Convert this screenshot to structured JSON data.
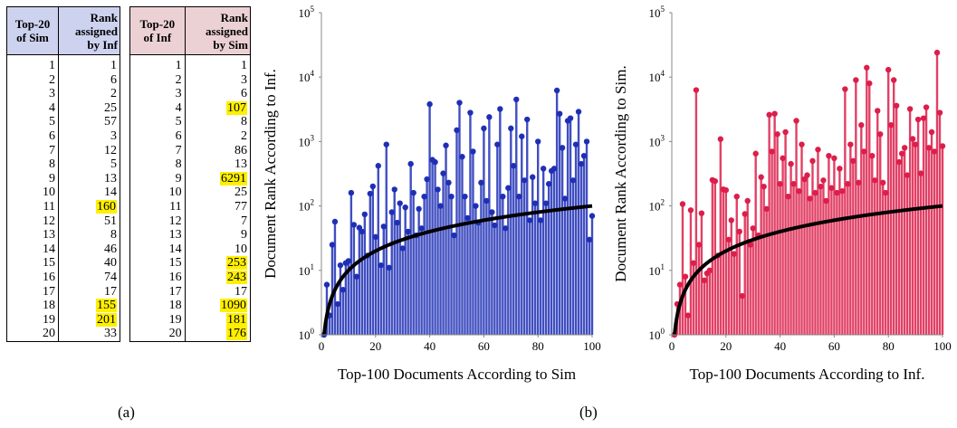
{
  "table_a": {
    "header_left_1": "Top-20",
    "header_left_2": "of Sim",
    "header_right_1": "Rank",
    "header_right_2": "assigned",
    "header_right_3": "by Inf",
    "highlight_color": "#ffef00",
    "rows": [
      [
        "1",
        "1",
        false
      ],
      [
        "2",
        "6",
        false
      ],
      [
        "3",
        "2",
        false
      ],
      [
        "4",
        "25",
        false
      ],
      [
        "5",
        "57",
        false
      ],
      [
        "6",
        "3",
        false
      ],
      [
        "7",
        "12",
        false
      ],
      [
        "8",
        "5",
        false
      ],
      [
        "9",
        "13",
        false
      ],
      [
        "10",
        "14",
        false
      ],
      [
        "11",
        "160",
        true
      ],
      [
        "12",
        "51",
        false
      ],
      [
        "13",
        "8",
        false
      ],
      [
        "14",
        "46",
        false
      ],
      [
        "15",
        "40",
        false
      ],
      [
        "16",
        "74",
        false
      ],
      [
        "17",
        "17",
        false
      ],
      [
        "18",
        "155",
        true
      ],
      [
        "19",
        "201",
        true
      ],
      [
        "20",
        "33",
        false
      ]
    ]
  },
  "table_b": {
    "header_left_1": "Top-20",
    "header_left_2": "of Inf",
    "header_right_1": "Rank",
    "header_right_2": "assigned",
    "header_right_3": "by Sim",
    "rows": [
      [
        "1",
        "1",
        false
      ],
      [
        "2",
        "3",
        false
      ],
      [
        "3",
        "6",
        false
      ],
      [
        "4",
        "107",
        true
      ],
      [
        "5",
        "8",
        false
      ],
      [
        "6",
        "2",
        false
      ],
      [
        "7",
        "86",
        false
      ],
      [
        "8",
        "13",
        false
      ],
      [
        "9",
        "6291",
        true
      ],
      [
        "10",
        "25",
        false
      ],
      [
        "11",
        "77",
        false
      ],
      [
        "12",
        "7",
        false
      ],
      [
        "13",
        "9",
        false
      ],
      [
        "14",
        "10",
        false
      ],
      [
        "15",
        "253",
        true
      ],
      [
        "16",
        "243",
        true
      ],
      [
        "17",
        "17",
        false
      ],
      [
        "18",
        "1090",
        true
      ],
      [
        "19",
        "181",
        true
      ],
      [
        "20",
        "176",
        true
      ]
    ]
  },
  "captions": {
    "a": "(a)",
    "b": "(b)"
  },
  "chart_data": [
    {
      "type": "bar",
      "color": "#1f2fb5",
      "xlabel": "Top-100 Documents According to Sim",
      "ylabel": "Document Rank According to Inf.",
      "xlim": [
        0,
        100
      ],
      "ylim": [
        1,
        100000
      ],
      "yscale": "log",
      "xticks": [
        "0",
        "20",
        "40",
        "60",
        "80",
        "100"
      ],
      "yticks": [
        "10^0",
        "10^1",
        "10^2",
        "10^3",
        "10^4",
        "10^5"
      ],
      "reference_line": "y = x",
      "x": [
        1,
        2,
        3,
        4,
        5,
        6,
        7,
        8,
        9,
        10,
        11,
        12,
        13,
        14,
        15,
        16,
        17,
        18,
        19,
        20,
        21,
        22,
        23,
        24,
        25,
        26,
        27,
        28,
        29,
        30,
        31,
        32,
        33,
        34,
        35,
        36,
        37,
        38,
        39,
        40,
        41,
        42,
        43,
        44,
        45,
        46,
        47,
        48,
        49,
        50,
        51,
        52,
        53,
        54,
        55,
        56,
        57,
        58,
        59,
        60,
        61,
        62,
        63,
        64,
        65,
        66,
        67,
        68,
        69,
        70,
        71,
        72,
        73,
        74,
        75,
        76,
        77,
        78,
        79,
        80,
        81,
        82,
        83,
        84,
        85,
        86,
        87,
        88,
        89,
        90,
        91,
        92,
        93,
        94,
        95,
        96,
        97,
        98,
        99,
        100
      ],
      "values": [
        1,
        6,
        2,
        25,
        57,
        3,
        12,
        5,
        13,
        14,
        160,
        51,
        8,
        46,
        40,
        74,
        17,
        155,
        201,
        33,
        420,
        12,
        48,
        900,
        11,
        80,
        180,
        55,
        110,
        22,
        95,
        40,
        450,
        160,
        35,
        90,
        45,
        140,
        260,
        3800,
        520,
        480,
        180,
        100,
        320,
        870,
        230,
        140,
        35,
        1500,
        4000,
        580,
        140,
        65,
        2800,
        700,
        100,
        55,
        230,
        1600,
        120,
        2400,
        80,
        50,
        900,
        3200,
        140,
        45,
        190,
        1600,
        420,
        4500,
        140,
        1200,
        250,
        2200,
        60,
        280,
        110,
        1000,
        60,
        380,
        110,
        220,
        350,
        380,
        6200,
        2700,
        800,
        130,
        2100,
        2300,
        250,
        900,
        2900,
        450,
        600,
        1000,
        30,
        70
      ]
    },
    {
      "type": "bar",
      "color": "#dc1e4a",
      "xlabel": "Top-100 Documents According to Inf.",
      "ylabel": "Document Rank According to Sim.",
      "xlim": [
        0,
        100
      ],
      "ylim": [
        1,
        100000
      ],
      "yscale": "log",
      "xticks": [
        "0",
        "20",
        "40",
        "60",
        "80",
        "100"
      ],
      "yticks": [
        "10^0",
        "10^1",
        "10^2",
        "10^3",
        "10^4",
        "10^5"
      ],
      "reference_line": "y = x",
      "x": [
        1,
        2,
        3,
        4,
        5,
        6,
        7,
        8,
        9,
        10,
        11,
        12,
        13,
        14,
        15,
        16,
        17,
        18,
        19,
        20,
        21,
        22,
        23,
        24,
        25,
        26,
        27,
        28,
        29,
        30,
        31,
        32,
        33,
        34,
        35,
        36,
        37,
        38,
        39,
        40,
        41,
        42,
        43,
        44,
        45,
        46,
        47,
        48,
        49,
        50,
        51,
        52,
        53,
        54,
        55,
        56,
        57,
        58,
        59,
        60,
        61,
        62,
        63,
        64,
        65,
        66,
        67,
        68,
        69,
        70,
        71,
        72,
        73,
        74,
        75,
        76,
        77,
        78,
        79,
        80,
        81,
        82,
        83,
        84,
        85,
        86,
        87,
        88,
        89,
        90,
        91,
        92,
        93,
        94,
        95,
        96,
        97,
        98,
        99,
        100
      ],
      "values": [
        1,
        3,
        6,
        107,
        8,
        2,
        86,
        13,
        6291,
        25,
        77,
        7,
        9,
        10,
        253,
        243,
        17,
        1090,
        181,
        176,
        30,
        60,
        18,
        140,
        40,
        4,
        75,
        120,
        25,
        45,
        650,
        35,
        280,
        200,
        90,
        2600,
        700,
        2700,
        1300,
        220,
        550,
        1400,
        140,
        450,
        220,
        2100,
        170,
        900,
        260,
        300,
        130,
        500,
        160,
        750,
        200,
        250,
        120,
        600,
        190,
        550,
        160,
        380,
        170,
        6500,
        220,
        900,
        500,
        9000,
        230,
        1800,
        700,
        14000,
        8000,
        600,
        250,
        3000,
        1300,
        230,
        160,
        13000,
        1800,
        9000,
        3600,
        480,
        650,
        800,
        300,
        3200,
        1100,
        900,
        2200,
        320,
        2300,
        3400,
        800,
        1400,
        700,
        24000,
        2800,
        850
      ]
    }
  ]
}
